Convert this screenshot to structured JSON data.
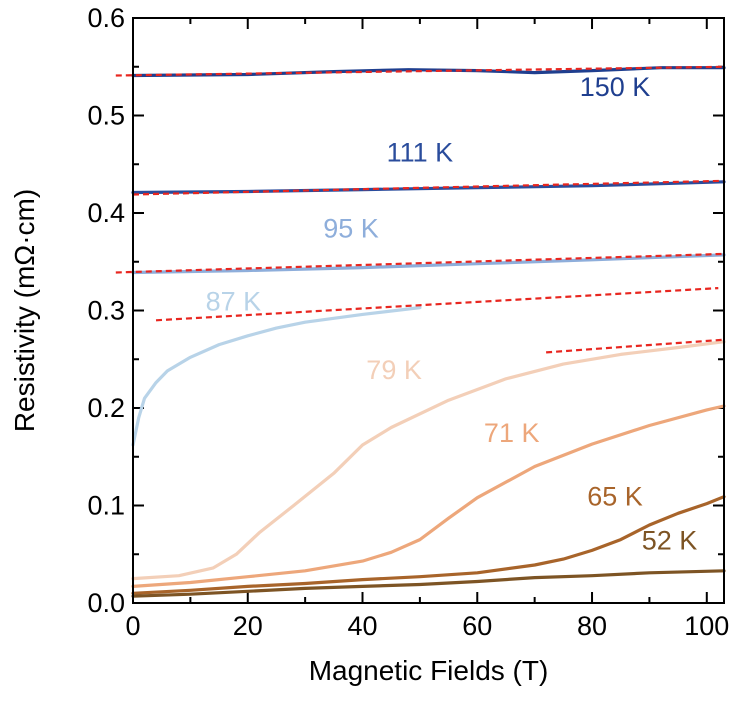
{
  "chart_data": {
    "type": "line",
    "title": "",
    "xlabel": "Magnetic Fields (T)",
    "ylabel": "Resistivity (mΩ·cm)",
    "xlim": [
      0,
      103
    ],
    "ylim": [
      0,
      0.6
    ],
    "xticks": [
      0,
      20,
      40,
      60,
      80,
      100
    ],
    "xtick_labels": [
      "0",
      "20",
      "40",
      "60",
      "80",
      "100"
    ],
    "yticks": [
      0.0,
      0.1,
      0.2,
      0.3,
      0.4,
      0.5,
      0.6
    ],
    "ytick_labels": [
      "0.0",
      "0.1",
      "0.2",
      "0.3",
      "0.4",
      "0.5",
      "0.6"
    ],
    "grid": false,
    "legend": "none",
    "series": [
      {
        "name": "150 K",
        "color": "#1f3f8f",
        "x": [
          0,
          20,
          35,
          48,
          60,
          70,
          80,
          92,
          103
        ],
        "y": [
          0.541,
          0.542,
          0.545,
          0.547,
          0.546,
          0.544,
          0.546,
          0.549,
          0.549
        ]
      },
      {
        "name": "111 K",
        "color": "#2a4c9c",
        "x": [
          0,
          20,
          40,
          60,
          80,
          103
        ],
        "y": [
          0.421,
          0.422,
          0.424,
          0.426,
          0.428,
          0.432
        ]
      },
      {
        "name": "95 K",
        "color": "#8eaedb",
        "x": [
          0,
          20,
          40,
          60,
          80,
          103
        ],
        "y": [
          0.339,
          0.341,
          0.344,
          0.348,
          0.352,
          0.357
        ]
      },
      {
        "name": "87 K",
        "color": "#b8d3e8",
        "x": [
          0,
          1,
          2,
          4,
          6,
          10,
          15,
          20,
          25,
          30,
          40,
          50
        ],
        "y": [
          0.162,
          0.19,
          0.21,
          0.226,
          0.238,
          0.252,
          0.265,
          0.274,
          0.282,
          0.288,
          0.296,
          0.303
        ]
      },
      {
        "name": "79 K",
        "color": "#f3cfb8",
        "x": [
          0,
          8,
          14,
          18,
          22,
          28,
          35,
          40,
          45,
          55,
          65,
          75,
          85,
          95,
          103
        ],
        "y": [
          0.025,
          0.028,
          0.036,
          0.05,
          0.072,
          0.1,
          0.133,
          0.162,
          0.18,
          0.208,
          0.23,
          0.245,
          0.255,
          0.262,
          0.268
        ]
      },
      {
        "name": "71 K",
        "color": "#eda77b",
        "x": [
          0,
          10,
          20,
          30,
          40,
          45,
          50,
          55,
          60,
          70,
          80,
          90,
          100,
          103
        ],
        "y": [
          0.017,
          0.021,
          0.027,
          0.033,
          0.043,
          0.052,
          0.065,
          0.087,
          0.108,
          0.14,
          0.163,
          0.182,
          0.198,
          0.202
        ]
      },
      {
        "name": "65 K",
        "color": "#a8642a",
        "x": [
          0,
          10,
          20,
          30,
          40,
          50,
          60,
          70,
          75,
          80,
          85,
          90,
          95,
          100,
          103
        ],
        "y": [
          0.01,
          0.013,
          0.017,
          0.02,
          0.024,
          0.027,
          0.031,
          0.039,
          0.045,
          0.054,
          0.065,
          0.08,
          0.092,
          0.102,
          0.109
        ]
      },
      {
        "name": "52 K",
        "color": "#7d5424",
        "x": [
          0,
          10,
          20,
          30,
          40,
          50,
          60,
          70,
          80,
          90,
          103
        ],
        "y": [
          0.007,
          0.009,
          0.012,
          0.015,
          0.017,
          0.019,
          0.022,
          0.026,
          0.028,
          0.031,
          0.033
        ]
      }
    ],
    "fits": [
      {
        "color": "#e8261f",
        "x": [
          -3,
          103
        ],
        "y": [
          0.541,
          0.55
        ]
      },
      {
        "color": "#e8261f",
        "x": [
          0,
          103
        ],
        "y": [
          0.419,
          0.433
        ]
      },
      {
        "color": "#e8261f",
        "x": [
          -3,
          103
        ],
        "y": [
          0.339,
          0.358
        ]
      },
      {
        "color": "#e8261f",
        "x": [
          4,
          102
        ],
        "y": [
          0.29,
          0.323
        ]
      },
      {
        "color": "#e8261f",
        "x": [
          72,
          103
        ],
        "y": [
          0.257,
          0.27
        ]
      }
    ],
    "annotations": [
      {
        "text": "150 K",
        "color": "#1f3f8f",
        "x": 84,
        "y": 0.52
      },
      {
        "text": "111 K",
        "color": "#2a4c9c",
        "x": 50,
        "y": 0.453
      },
      {
        "text": "95 K",
        "color": "#8eaedb",
        "x": 38,
        "y": 0.375
      },
      {
        "text": "87 K",
        "color": "#b8d3e8",
        "x": 17.5,
        "y": 0.3
      },
      {
        "text": "79 K",
        "color": "#f3cfb8",
        "x": 45.5,
        "y": 0.23
      },
      {
        "text": "71 K",
        "color": "#eda77b",
        "x": 66,
        "y": 0.165
      },
      {
        "text": "65 K",
        "color": "#a8642a",
        "x": 84,
        "y": 0.1
      },
      {
        "text": "52 K",
        "color": "#7d5424",
        "x": 93.5,
        "y": 0.055
      }
    ]
  }
}
